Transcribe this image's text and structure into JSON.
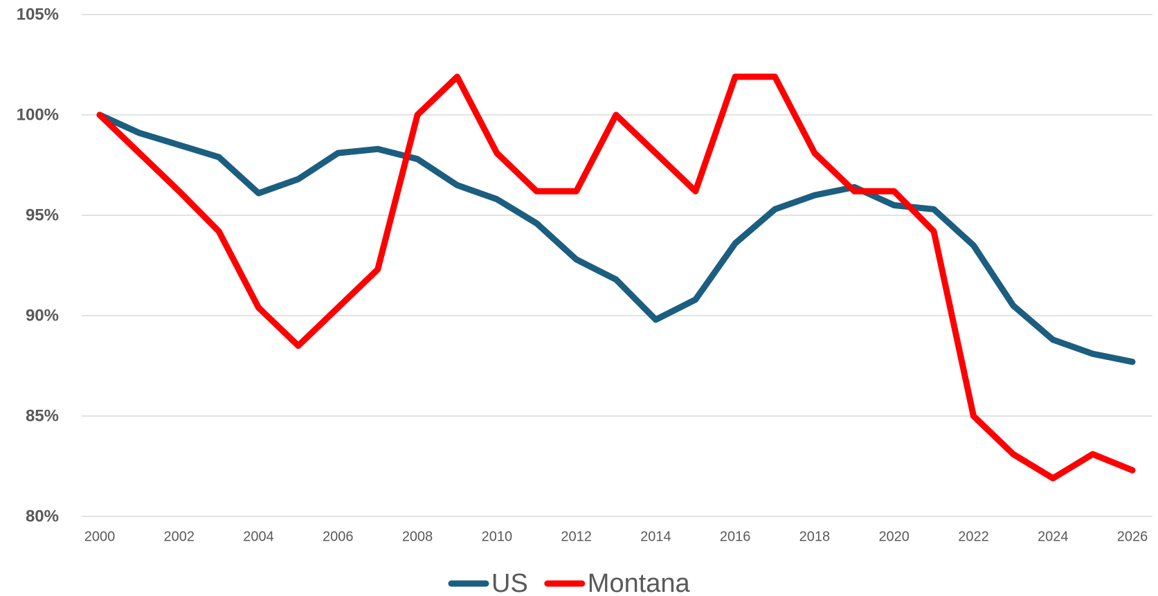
{
  "chart_data": {
    "type": "line",
    "x": [
      2000,
      2001,
      2002,
      2003,
      2004,
      2005,
      2006,
      2007,
      2008,
      2009,
      2010,
      2011,
      2012,
      2013,
      2014,
      2015,
      2016,
      2017,
      2018,
      2019,
      2020,
      2021,
      2022,
      2023,
      2024,
      2025,
      2026
    ],
    "series": [
      {
        "name": "US",
        "color": "#1b5e80",
        "values": [
          100,
          99.1,
          98.5,
          97.9,
          96.1,
          96.8,
          98.1,
          98.3,
          97.8,
          96.5,
          95.8,
          94.6,
          92.8,
          91.8,
          89.8,
          90.8,
          93.6,
          95.3,
          96.0,
          96.4,
          95.5,
          95.3,
          93.5,
          90.5,
          88.8,
          88.1,
          87.7
        ]
      },
      {
        "name": "Montana",
        "color": "#ff0000",
        "values": [
          100,
          98.1,
          96.2,
          94.2,
          90.4,
          88.5,
          90.4,
          92.3,
          100,
          101.9,
          98.1,
          96.2,
          96.2,
          100,
          98.1,
          96.2,
          101.9,
          101.9,
          98.1,
          96.2,
          96.2,
          94.2,
          85.0,
          83.1,
          81.9,
          83.1,
          82.3
        ]
      }
    ],
    "xlim": [
      2000,
      2026
    ],
    "xticks": [
      2000,
      2002,
      2004,
      2006,
      2008,
      2010,
      2012,
      2014,
      2016,
      2018,
      2020,
      2022,
      2024,
      2026
    ],
    "ylim": [
      80,
      105
    ],
    "yticks": [
      {
        "value": 80,
        "label": "80%"
      },
      {
        "value": 85,
        "label": "85%"
      },
      {
        "value": 90,
        "label": "90%"
      },
      {
        "value": 95,
        "label": "95%"
      },
      {
        "value": 100,
        "label": "100%"
      },
      {
        "value": 105,
        "label": "105%"
      }
    ],
    "grid": true,
    "legend": "bottom"
  }
}
